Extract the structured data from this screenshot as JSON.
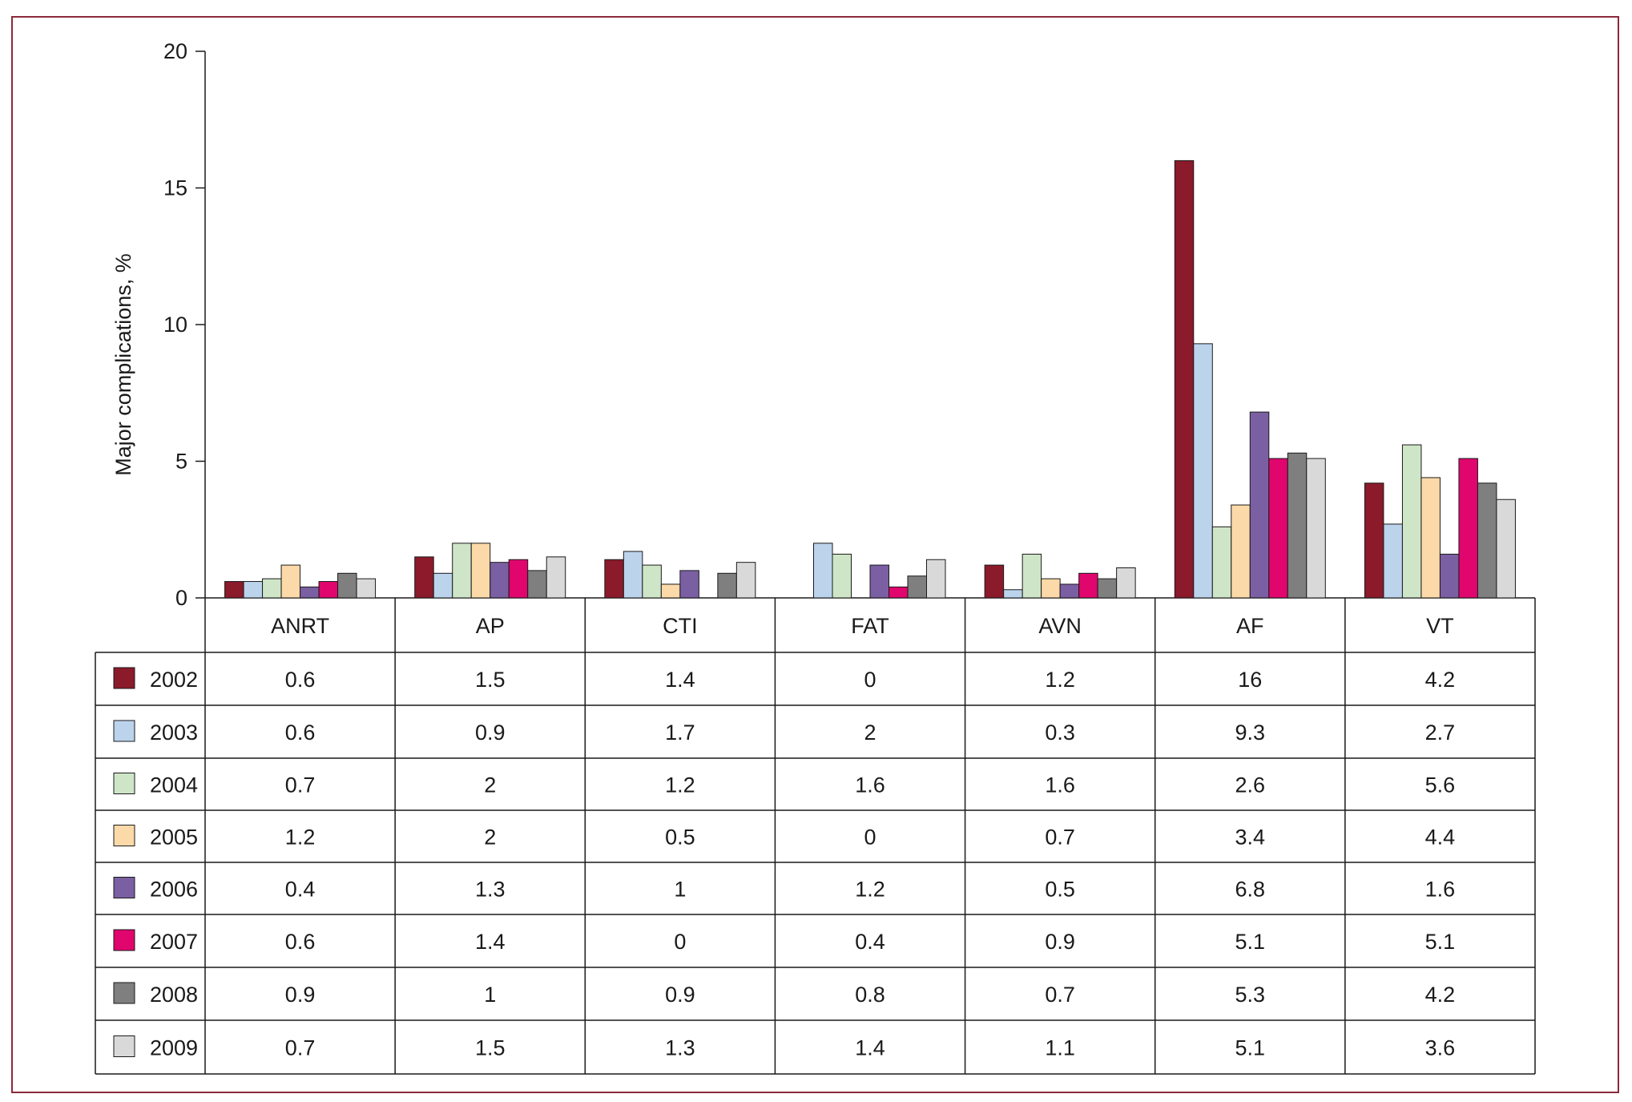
{
  "chart_data": {
    "type": "bar",
    "ylabel": "Major complications, %",
    "ylim": [
      0,
      20
    ],
    "yticks": [
      0,
      5,
      10,
      15,
      20
    ],
    "categories": [
      "ANRT",
      "AP",
      "CTI",
      "FAT",
      "AVN",
      "AF",
      "VT"
    ],
    "legend_placement": "table-left",
    "series": [
      {
        "name": "2002",
        "color": "#8b1a2b",
        "values": [
          0.6,
          1.5,
          1.4,
          0,
          1.2,
          16,
          4.2
        ]
      },
      {
        "name": "2003",
        "color": "#bcd3ec",
        "values": [
          0.6,
          0.9,
          1.7,
          2,
          0.3,
          9.3,
          2.7
        ]
      },
      {
        "name": "2004",
        "color": "#cfe5c7",
        "values": [
          0.7,
          2,
          1.2,
          1.6,
          1.6,
          2.6,
          5.6
        ]
      },
      {
        "name": "2005",
        "color": "#fcd9a8",
        "values": [
          1.2,
          2,
          0.5,
          0,
          0.7,
          3.4,
          4.4
        ]
      },
      {
        "name": "2006",
        "color": "#7b5fa3",
        "values": [
          0.4,
          1.3,
          1,
          1.2,
          0.5,
          6.8,
          1.6
        ]
      },
      {
        "name": "2007",
        "color": "#e0066e",
        "values": [
          0.6,
          1.4,
          0,
          0.4,
          0.9,
          5.1,
          5.1
        ]
      },
      {
        "name": "2008",
        "color": "#7f7f7f",
        "values": [
          0.9,
          1,
          0.9,
          0.8,
          0.7,
          5.3,
          4.2
        ]
      },
      {
        "name": "2009",
        "color": "#d9d9d9",
        "values": [
          0.7,
          1.5,
          1.3,
          1.4,
          1.1,
          5.1,
          3.6
        ]
      }
    ]
  }
}
